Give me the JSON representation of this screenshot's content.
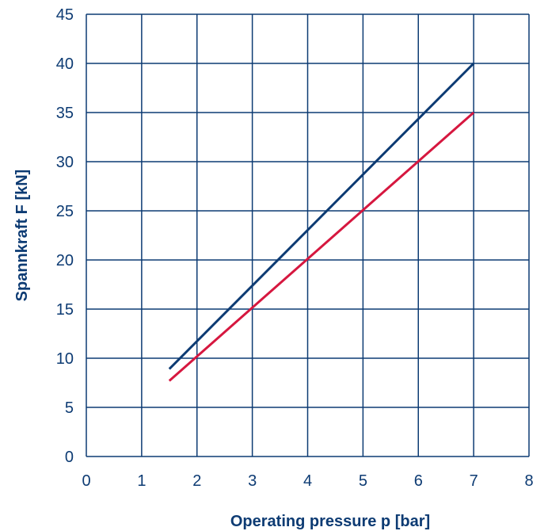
{
  "chart_data": {
    "type": "line",
    "xlabel": "Operating pressure p [bar]",
    "ylabel": "Spannkraft F [kN]",
    "xlim": [
      0,
      8
    ],
    "ylim": [
      0,
      45
    ],
    "x_ticks": [
      "0",
      "1",
      "2",
      "3",
      "4",
      "5",
      "6",
      "7",
      "8"
    ],
    "y_ticks": [
      "0",
      "5",
      "10",
      "15",
      "20",
      "25",
      "30",
      "35",
      "40",
      "45"
    ],
    "grid": true,
    "series": [
      {
        "color": "#0d3b73",
        "x": [
          1.5,
          7.0
        ],
        "y": [
          8.9,
          40.0
        ]
      },
      {
        "color": "#d6173f",
        "x": [
          1.5,
          7.0
        ],
        "y": [
          7.7,
          35.0
        ]
      }
    ],
    "colors": {
      "text": "#0d3b73",
      "grid": "#0d3b73"
    }
  }
}
